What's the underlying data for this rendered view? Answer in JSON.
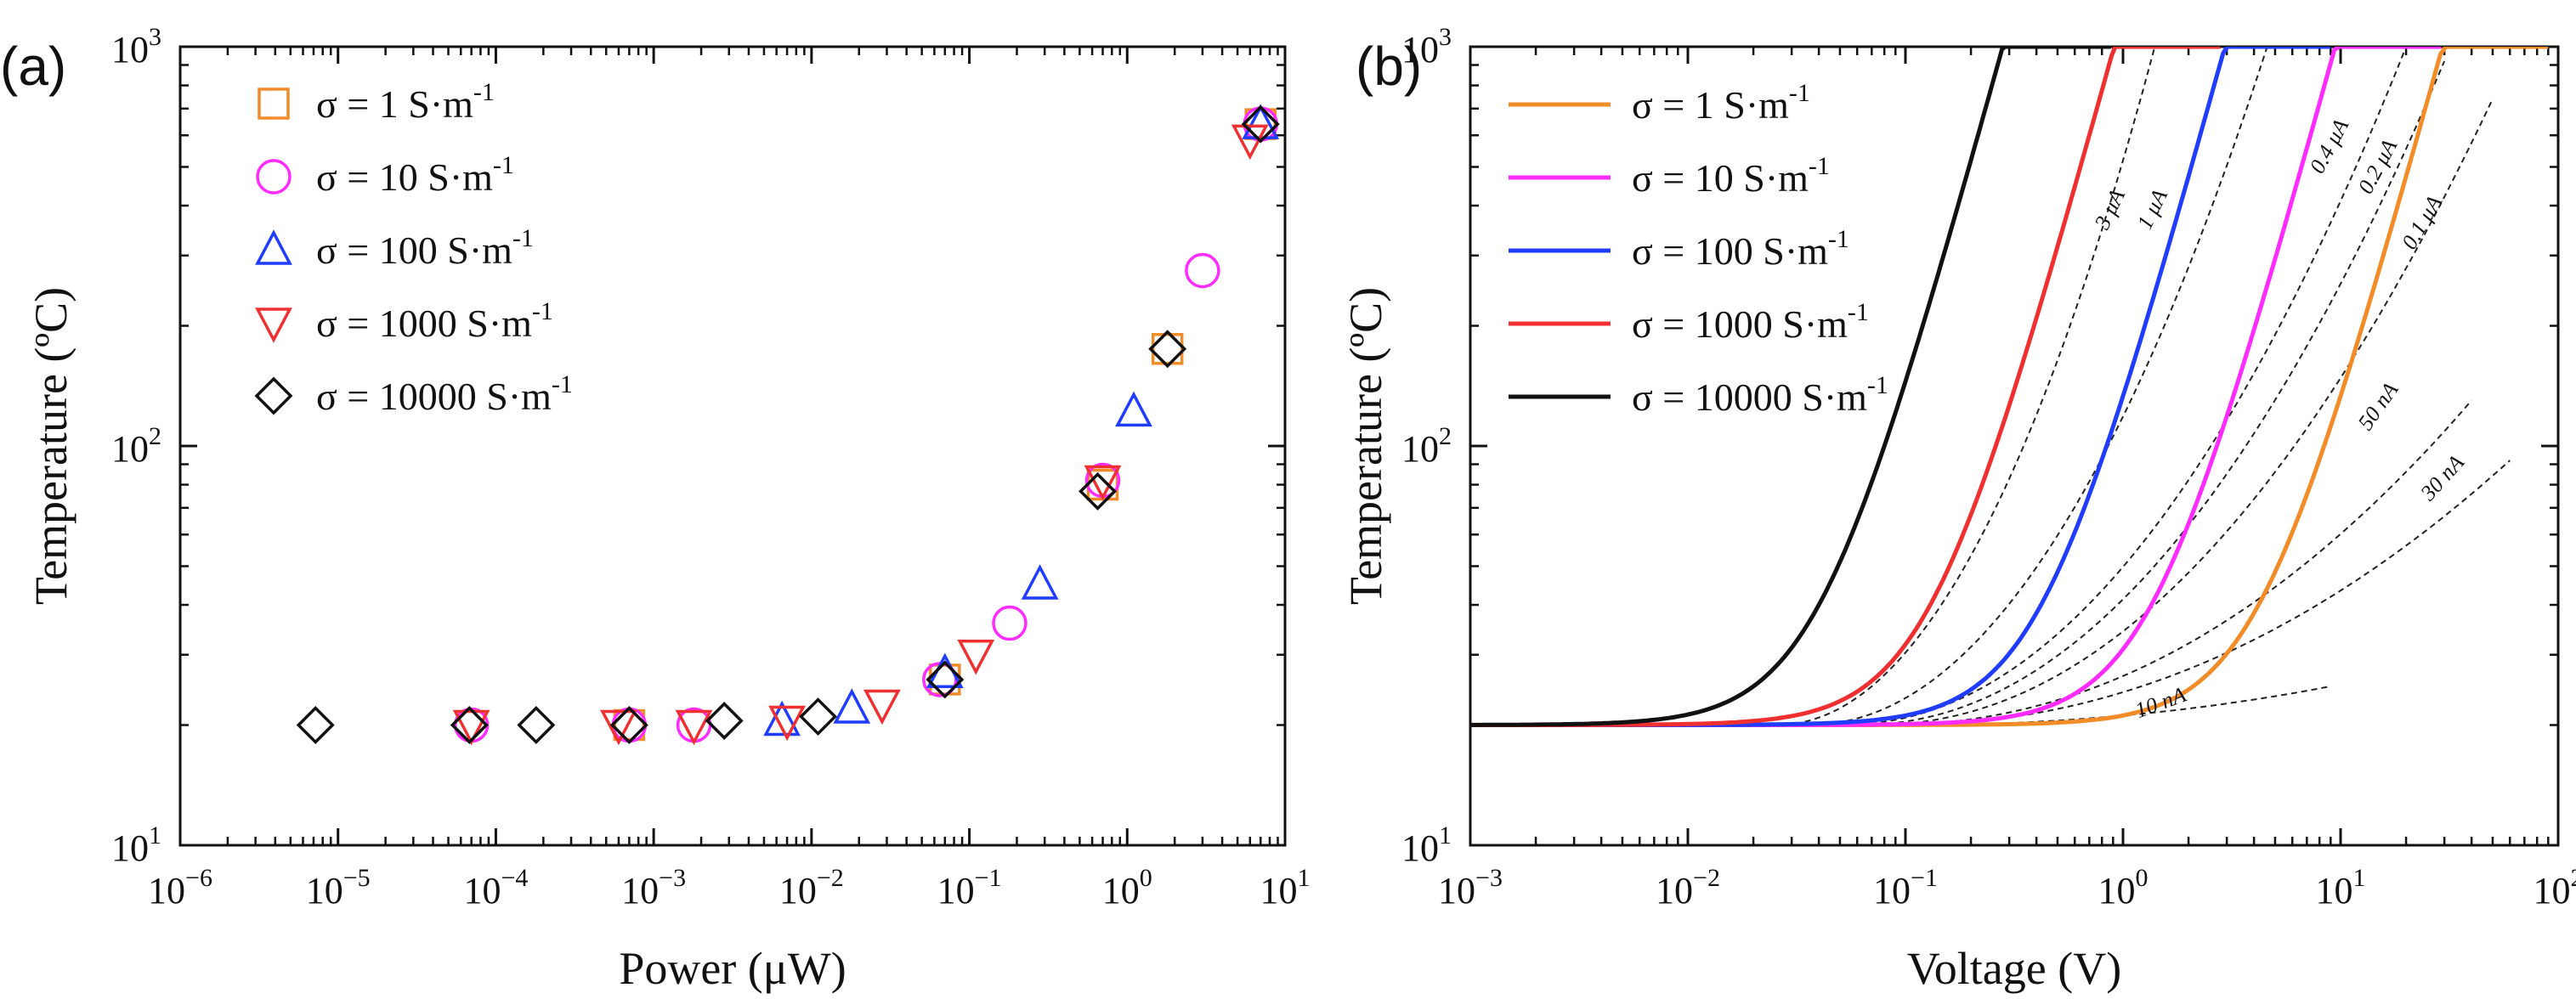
{
  "chart_data": [
    {
      "panel": "(a)",
      "type": "scatter",
      "xlabel": "Power (μW)",
      "ylabel": "Temperature (ºC)",
      "xscale": "log",
      "yscale": "log",
      "xlim": [
        1e-06,
        10
      ],
      "ylim": [
        10,
        1000
      ],
      "xtick_exps": [
        -6,
        -5,
        -4,
        -3,
        -2,
        -1,
        0,
        1
      ],
      "ytick_exps": [
        1,
        2,
        3
      ],
      "tick_base": "10",
      "legend_position": "top-left",
      "series": [
        {
          "name": "σ = 1 S·m",
          "sup": "-1",
          "marker": "square",
          "color": "#f28c28",
          "x": [
            0.0007,
            0.07,
            0.7,
            1.8,
            7
          ],
          "y": [
            20,
            26,
            80,
            175,
            640
          ]
        },
        {
          "name": "σ = 10 S·m",
          "sup": "-1",
          "marker": "circle",
          "color": "#ff2bff",
          "x": [
            7e-05,
            0.0007,
            0.0018,
            0.065,
            0.18,
            0.7,
            3,
            7
          ],
          "y": [
            20,
            20,
            20,
            26,
            36,
            82,
            275,
            640
          ]
        },
        {
          "name": "σ = 100 S·m",
          "sup": "-1",
          "marker": "triangle-up",
          "color": "#1f3cff",
          "x": [
            0.0065,
            0.018,
            0.07,
            0.28,
            1.1,
            7
          ],
          "y": [
            20.5,
            22,
            27,
            45,
            122,
            640
          ]
        },
        {
          "name": "σ = 1000 S·m",
          "sup": "-1",
          "marker": "triangle-down",
          "color": "#f03030",
          "x": [
            7e-05,
            0.0006,
            0.0018,
            0.007,
            0.028,
            0.11,
            0.7,
            6
          ],
          "y": [
            20,
            20,
            20,
            20.5,
            22.5,
            30,
            82,
            585
          ]
        },
        {
          "name": "σ = 10000 S·m",
          "sup": "-1",
          "marker": "diamond",
          "color": "#111111",
          "x": [
            7.2e-06,
            6.8e-05,
            0.00018,
            0.0007,
            0.0028,
            0.011,
            0.07,
            0.65,
            1.8,
            7
          ],
          "y": [
            20,
            20,
            20,
            20,
            20.5,
            21,
            26,
            77,
            175,
            640
          ]
        }
      ]
    },
    {
      "panel": "(b)",
      "type": "line",
      "xlabel": "Voltage (V)",
      "ylabel": "Temperature (ºC)",
      "xscale": "log",
      "yscale": "log",
      "xlim": [
        0.001,
        100
      ],
      "ylim": [
        10,
        1000
      ],
      "xtick_exps": [
        -3,
        -2,
        -1,
        0,
        1,
        2
      ],
      "ytick_exps": [
        1,
        2,
        3
      ],
      "tick_base": "10",
      "legend_position": "top-left",
      "series": [
        {
          "name": "σ = 1 S·m",
          "sup": "-1",
          "color": "#f28c28",
          "v_one_half": 4.2,
          "v_max": 90
        },
        {
          "name": "σ = 10 S·m",
          "sup": "-1",
          "color": "#ff2bff",
          "v_one_half": 1.35,
          "v_max": 29
        },
        {
          "name": "σ = 100 S·m",
          "sup": "-1",
          "color": "#1f3cff",
          "v_one_half": 0.42,
          "v_max": 9
        },
        {
          "name": "σ = 1000 S·m",
          "sup": "-1",
          "color": "#f03030",
          "v_one_half": 0.13,
          "v_max": 2.8
        },
        {
          "name": "σ = 10000 S·m",
          "sup": "-1",
          "color": "#111111",
          "v_one_half": 0.04,
          "v_max": 0.88
        }
      ],
      "constant_current_lines": [
        {
          "label": "10 nA",
          "v_start": 0.1,
          "v_end": 9,
          "t_end": 25
        },
        {
          "label": "30 nA",
          "v_start": 0.09,
          "v_end": 60,
          "t_end": 92
        },
        {
          "label": "50 nA",
          "v_start": 0.08,
          "v_end": 40,
          "t_end": 130
        },
        {
          "label": "0.1 μA",
          "v_start": 0.07,
          "v_end": 50,
          "t_end": 740
        },
        {
          "label": "0.2 μA",
          "v_start": 0.06,
          "v_end": 30,
          "t_end": 920
        },
        {
          "label": "0.4 μA",
          "v_start": 0.05,
          "v_end": 20,
          "t_end": 1000
        },
        {
          "label": "1 μA",
          "v_start": 0.035,
          "v_end": 4.6,
          "t_end": 1000
        },
        {
          "label": "3 μA",
          "v_start": 0.025,
          "v_end": 1.4,
          "t_end": 1000
        }
      ]
    }
  ]
}
